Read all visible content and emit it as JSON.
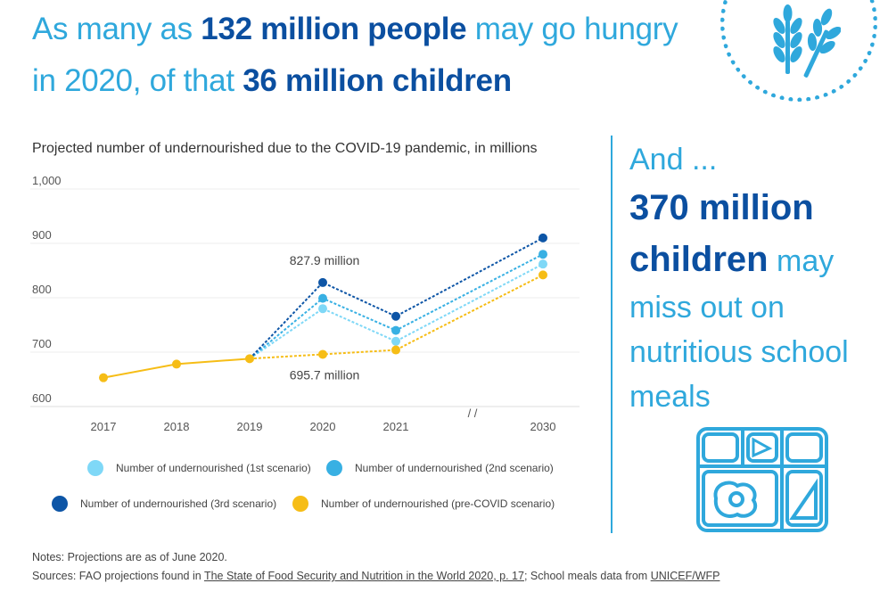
{
  "headline": {
    "part1": "As many as ",
    "bold1": "132 million people",
    "part2": " may go hungry in 2020, of that ",
    "bold2": "36 million children"
  },
  "side": {
    "line1": "And ...",
    "bold": "370 million children",
    "rest": " may miss out on nutritious school meals"
  },
  "icons": {
    "badge": "wheat-icon",
    "meals": "school-meal-tray-icon"
  },
  "colors": {
    "light_blue": "#2fa8dc",
    "dark_blue": "#0b4fa0",
    "scenario1": "#7fd8f7",
    "scenario2": "#38b0e3",
    "scenario3": "#0d55a6",
    "precovid": "#f6bd16"
  },
  "chart_data": {
    "type": "line",
    "title": "Projected number of undernourished due to the COVID-19 pandemic, in millions",
    "categories": [
      "2017",
      "2018",
      "2019",
      "2020",
      "2021",
      "2030"
    ],
    "axis_break_label": "/ /",
    "ylim": [
      600,
      1000
    ],
    "yticks": [
      "1,000",
      "900",
      "800",
      "700",
      "600"
    ],
    "ytick_values": [
      1000,
      900,
      800,
      700,
      600
    ],
    "grid": true,
    "legend_placement": "bottom",
    "series": [
      {
        "name": "Number of undernourished (1st scenario)",
        "color": "#7fd8f7",
        "values": [
          null,
          null,
          688,
          780,
          720,
          862
        ]
      },
      {
        "name": "Number of undernourished (2nd scenario)",
        "color": "#38b0e3",
        "values": [
          null,
          null,
          688,
          799,
          740,
          880
        ]
      },
      {
        "name": "Number of undernourished (3rd scenario)",
        "color": "#0d55a6",
        "values": [
          null,
          null,
          688,
          828,
          766,
          910
        ]
      },
      {
        "name": "Number of undernourished (pre-COVID scenario)",
        "color": "#f6bd16",
        "values": [
          653,
          678,
          688,
          696,
          704,
          842
        ]
      }
    ],
    "annotations": [
      {
        "text": "827.9 million",
        "x": "2020",
        "value": 827.9
      },
      {
        "text": "695.7 million",
        "x": "2020",
        "value": 695.7
      }
    ]
  },
  "notes": {
    "line1": "Notes: Projections are as of June 2020.",
    "sources_prefix": "Sources:  FAO projections found in ",
    "sources_link1": "The State of Food Security and Nutrition in the World 2020, p. 17",
    "sources_mid": "; School meals data from ",
    "sources_link2": "UNICEF/WFP"
  }
}
